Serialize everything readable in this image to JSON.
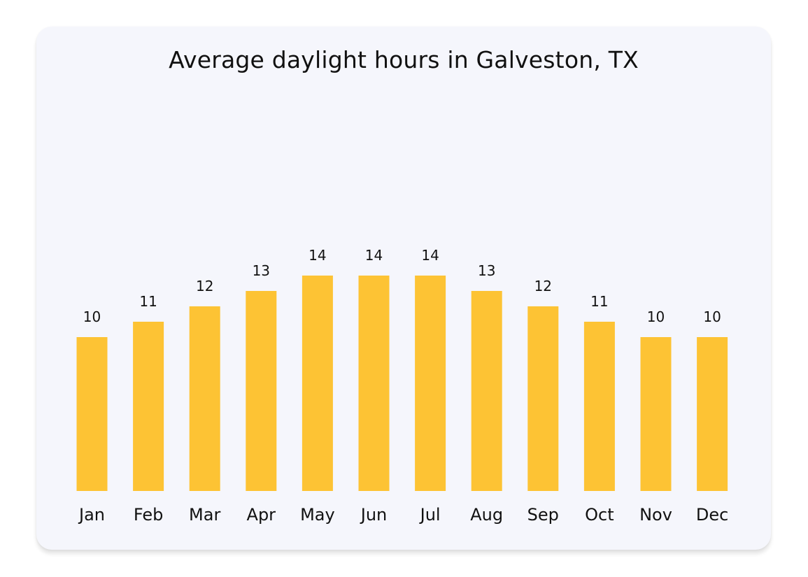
{
  "chart_data": {
    "type": "bar",
    "title": "Average daylight hours in Galveston, TX",
    "xlabel": "",
    "ylabel": "",
    "categories": [
      "Jan",
      "Feb",
      "Mar",
      "Apr",
      "May",
      "Jun",
      "Jul",
      "Aug",
      "Sep",
      "Oct",
      "Nov",
      "Dec"
    ],
    "values": [
      10,
      11,
      12,
      13,
      14,
      14,
      14,
      13,
      12,
      11,
      10,
      10
    ],
    "data_labels": true,
    "grid": false,
    "bar_color": "#fdc334",
    "background_color": "#f5f6fc"
  }
}
